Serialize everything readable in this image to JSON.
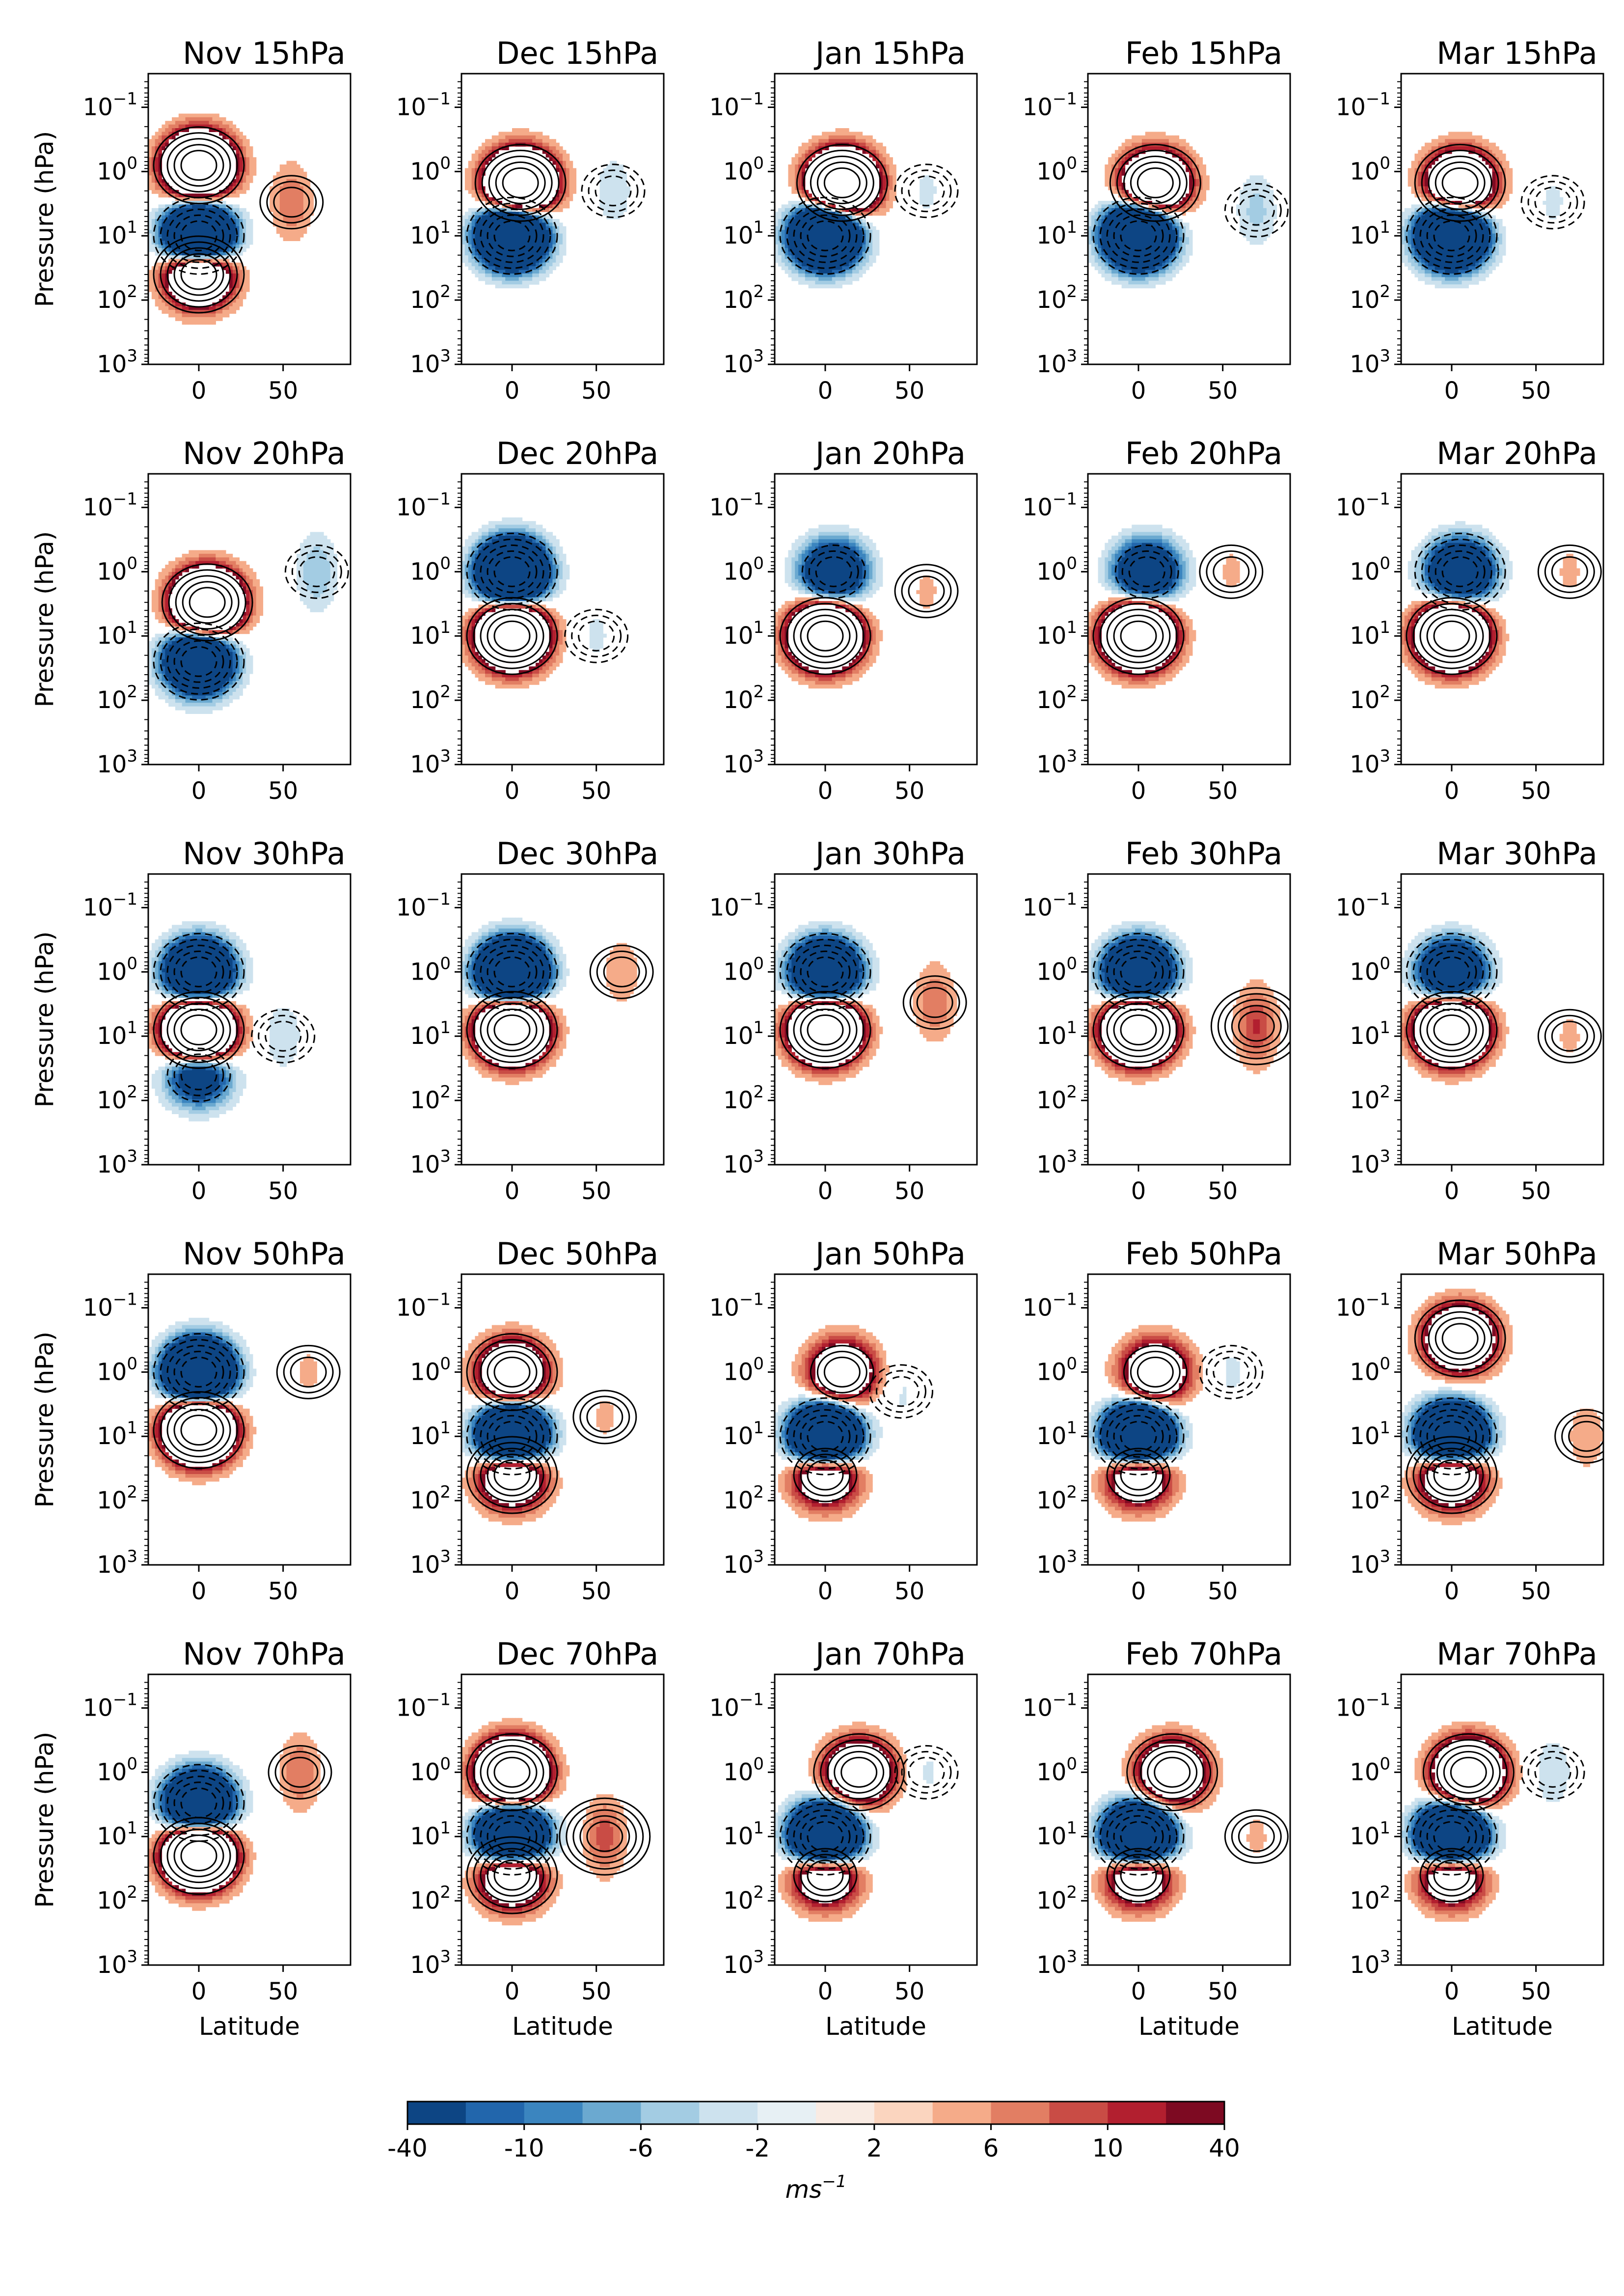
{
  "chart_data": {
    "type": "heatmap",
    "description_rows": [
      "15hPa",
      "20hPa",
      "30hPa",
      "50hPa",
      "70hPa"
    ],
    "months": [
      "Nov",
      "Dec",
      "Jan",
      "Feb",
      "Mar"
    ],
    "titles": [
      [
        "Nov 15hPa",
        "Dec 15hPa",
        "Jan 15hPa",
        "Feb 15hPa",
        "Mar 15hPa"
      ],
      [
        "Nov 20hPa",
        "Dec 20hPa",
        "Jan 20hPa",
        "Feb 20hPa",
        "Mar 20hPa"
      ],
      [
        "Nov 30hPa",
        "Dec 30hPa",
        "Jan 30hPa",
        "Feb 30hPa",
        "Mar 30hPa"
      ],
      [
        "Nov 50hPa",
        "Dec 50hPa",
        "Jan 50hPa",
        "Feb 50hPa",
        "Mar 50hPa"
      ],
      [
        "Nov 70hPa",
        "Dec 70hPa",
        "Jan 70hPa",
        "Feb 70hPa",
        "Mar 70hPa"
      ]
    ],
    "xlabel": "Latitude",
    "ylabel": "Pressure (hPa)",
    "xlim": [
      -30,
      90
    ],
    "xticks": [
      0,
      50
    ],
    "xtick_labels": [
      "0",
      "50"
    ],
    "ylim": [
      1000,
      0.03
    ],
    "y_scale": "log",
    "yticks": [
      0.1,
      1,
      10,
      100,
      1000
    ],
    "ytick_base": "10",
    "ytick_exponents": [
      "−1",
      "0",
      "1",
      "2",
      "3"
    ],
    "grid": false,
    "colorbar": {
      "orientation": "horizontal",
      "tick_labels": [
        "-40",
        "-10",
        "-6",
        "-2",
        "2",
        "6",
        "10",
        "40"
      ],
      "levels": [
        -40,
        -12,
        -10,
        -8,
        -6,
        -4,
        -2,
        -1,
        1,
        2,
        4,
        6,
        8,
        10,
        12,
        40
      ],
      "colors": [
        "#0d4584",
        "#2266ac",
        "#3b85bf",
        "#6ba9d0",
        "#a3cce3",
        "#cde2ee",
        "#e7f0f4",
        "#f9ebe3",
        "#fbd5bf",
        "#f5ab89",
        "#e27e63",
        "#c94c45",
        "#b21f2f",
        "#7d0a22"
      ],
      "unit_base": "ms",
      "unit_exp": "−1"
    },
    "panels": [
      [
        {
          "blobs": [
            [
              0,
              0.8,
              1
            ],
            [
              0,
              10,
              -1
            ],
            [
              0,
              40,
              0.7
            ]
          ],
          "side": [
            [
              55,
              3,
              0.5
            ]
          ]
        },
        {
          "blobs": [
            [
              5,
              1.5,
              1
            ],
            [
              0,
              10,
              -1
            ]
          ],
          "side": [
            [
              60,
              2,
              -0.3
            ]
          ]
        },
        {
          "blobs": [
            [
              10,
              1.5,
              1
            ],
            [
              0,
              10,
              -1
            ]
          ],
          "side": [
            [
              60,
              2,
              -0.2
            ]
          ]
        },
        {
          "blobs": [
            [
              10,
              1.5,
              0.7
            ],
            [
              0,
              10,
              -1
            ]
          ],
          "side": [
            [
              70,
              4,
              -0.4
            ]
          ]
        },
        {
          "blobs": [
            [
              5,
              1.5,
              0.7
            ],
            [
              0,
              10,
              -1
            ]
          ],
          "side": [
            [
              60,
              3,
              -0.2
            ]
          ]
        }
      ],
      [
        {
          "blobs": [
            [
              5,
              3,
              1
            ],
            [
              0,
              25,
              -0.8
            ]
          ],
          "side": [
            [
              70,
              1,
              -0.5
            ]
          ]
        },
        {
          "blobs": [
            [
              0,
              1,
              -1
            ],
            [
              0,
              10,
              1
            ]
          ],
          "side": [
            [
              50,
              10,
              -0.2
            ]
          ]
        },
        {
          "blobs": [
            [
              5,
              1,
              -0.5
            ],
            [
              0,
              10,
              1
            ]
          ],
          "side": [
            [
              60,
              2,
              0.2
            ]
          ]
        },
        {
          "blobs": [
            [
              5,
              1,
              -0.5
            ],
            [
              0,
              10,
              1
            ]
          ],
          "side": [
            [
              55,
              1,
              0.2
            ]
          ]
        },
        {
          "blobs": [
            [
              5,
              1,
              -0.6
            ],
            [
              0,
              10,
              1
            ]
          ],
          "side": [
            [
              70,
              1,
              0.2
            ]
          ]
        }
      ],
      [
        {
          "blobs": [
            [
              0,
              1,
              -0.8
            ],
            [
              0,
              8,
              1
            ],
            [
              0,
              40,
              -0.4
            ]
          ],
          "side": [
            [
              50,
              10,
              -0.3
            ]
          ]
        },
        {
          "blobs": [
            [
              0,
              1,
              -1
            ],
            [
              0,
              8,
              1
            ]
          ],
          "side": [
            [
              65,
              1,
              0.3
            ]
          ]
        },
        {
          "blobs": [
            [
              0,
              1,
              -0.8
            ],
            [
              0,
              8,
              1
            ]
          ],
          "side": [
            [
              65,
              3,
              0.5
            ]
          ]
        },
        {
          "blobs": [
            [
              0,
              1,
              -0.8
            ],
            [
              0,
              8,
              1
            ]
          ],
          "side": [
            [
              70,
              7,
              0.7
            ]
          ]
        },
        {
          "blobs": [
            [
              0,
              1,
              -0.6
            ],
            [
              0,
              8,
              1
            ]
          ],
          "side": [
            [
              70,
              10,
              0.2
            ]
          ]
        }
      ],
      [
        {
          "blobs": [
            [
              0,
              1,
              -1
            ],
            [
              0,
              8,
              1
            ]
          ],
          "side": [
            [
              65,
              1,
              0.2
            ]
          ]
        },
        {
          "blobs": [
            [
              0,
              1,
              0.6
            ],
            [
              0,
              10,
              -1
            ],
            [
              0,
              40,
              0.6
            ]
          ],
          "side": [
            [
              55,
              5,
              0.2
            ]
          ]
        },
        {
          "blobs": [
            [
              10,
              1,
              0.5
            ],
            [
              0,
              10,
              -1
            ],
            [
              0,
              40,
              0.5
            ]
          ],
          "side": [
            [
              45,
              2,
              -0.2
            ]
          ]
        },
        {
          "blobs": [
            [
              10,
              1,
              0.5
            ],
            [
              0,
              10,
              -1
            ],
            [
              0,
              40,
              0.5
            ]
          ],
          "side": [
            [
              55,
              1,
              -0.2
            ]
          ]
        },
        {
          "blobs": [
            [
              5,
              0.3,
              0.7
            ],
            [
              0,
              10,
              -1
            ],
            [
              0,
              40,
              0.6
            ]
          ],
          "side": [
            [
              80,
              10,
              0.3
            ]
          ]
        }
      ],
      [
        {
          "blobs": [
            [
              0,
              3,
              -0.8
            ],
            [
              0,
              20,
              1
            ]
          ],
          "side": [
            [
              60,
              1,
              0.5
            ]
          ]
        },
        {
          "blobs": [
            [
              0,
              1,
              1
            ],
            [
              0,
              10,
              -1
            ],
            [
              0,
              40,
              0.6
            ]
          ],
          "side": [
            [
              55,
              10,
              0.6
            ]
          ]
        },
        {
          "blobs": [
            [
              20,
              1,
              0.6
            ],
            [
              0,
              10,
              -1
            ],
            [
              0,
              40,
              0.5
            ]
          ],
          "side": [
            [
              60,
              1,
              -0.2
            ]
          ]
        },
        {
          "blobs": [
            [
              20,
              1,
              0.6
            ],
            [
              0,
              10,
              -1
            ],
            [
              0,
              40,
              0.5
            ]
          ],
          "side": [
            [
              70,
              10,
              0.2
            ]
          ]
        },
        {
          "blobs": [
            [
              10,
              1,
              0.8
            ],
            [
              0,
              10,
              -1
            ],
            [
              0,
              40,
              0.5
            ]
          ],
          "side": [
            [
              60,
              1,
              -0.3
            ]
          ]
        }
      ]
    ]
  }
}
